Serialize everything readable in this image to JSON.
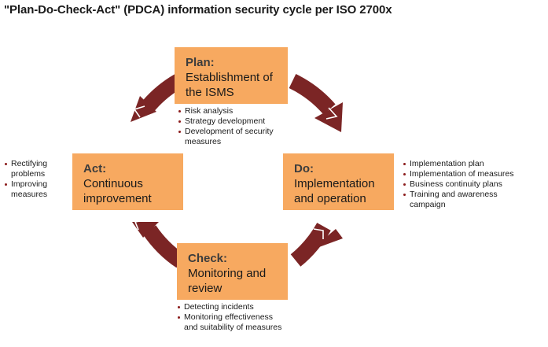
{
  "title": "\"Plan-Do-Check-Act\" (PDCA) information security cycle per ISO 2700x",
  "colors": {
    "box": "#f7a960",
    "ring": "#7b2525",
    "bullet": "#8b1c1c"
  },
  "phases": {
    "plan": {
      "heading": "Plan:",
      "subtitle": "Establishment of\nthe ISMS",
      "items": [
        "Risk analysis",
        "Strategy development",
        "Development of security\nmeasures"
      ]
    },
    "do": {
      "heading": "Do:",
      "subtitle": "Implementation\nand operation",
      "items": [
        "Implementation plan",
        "Implementation of measures",
        "Business continuity plans",
        "Training and awareness\ncampaign"
      ]
    },
    "check": {
      "heading": "Check:",
      "subtitle": "Monitoring and\nreview",
      "items": [
        "Detecting incidents",
        "Monitoring effectiveness\nand suitability of measures"
      ]
    },
    "act": {
      "heading": "Act:",
      "subtitle": "Continuous\nimprovement",
      "items": [
        "Rectifying\nproblems",
        "Improving\nmeasures"
      ]
    }
  }
}
